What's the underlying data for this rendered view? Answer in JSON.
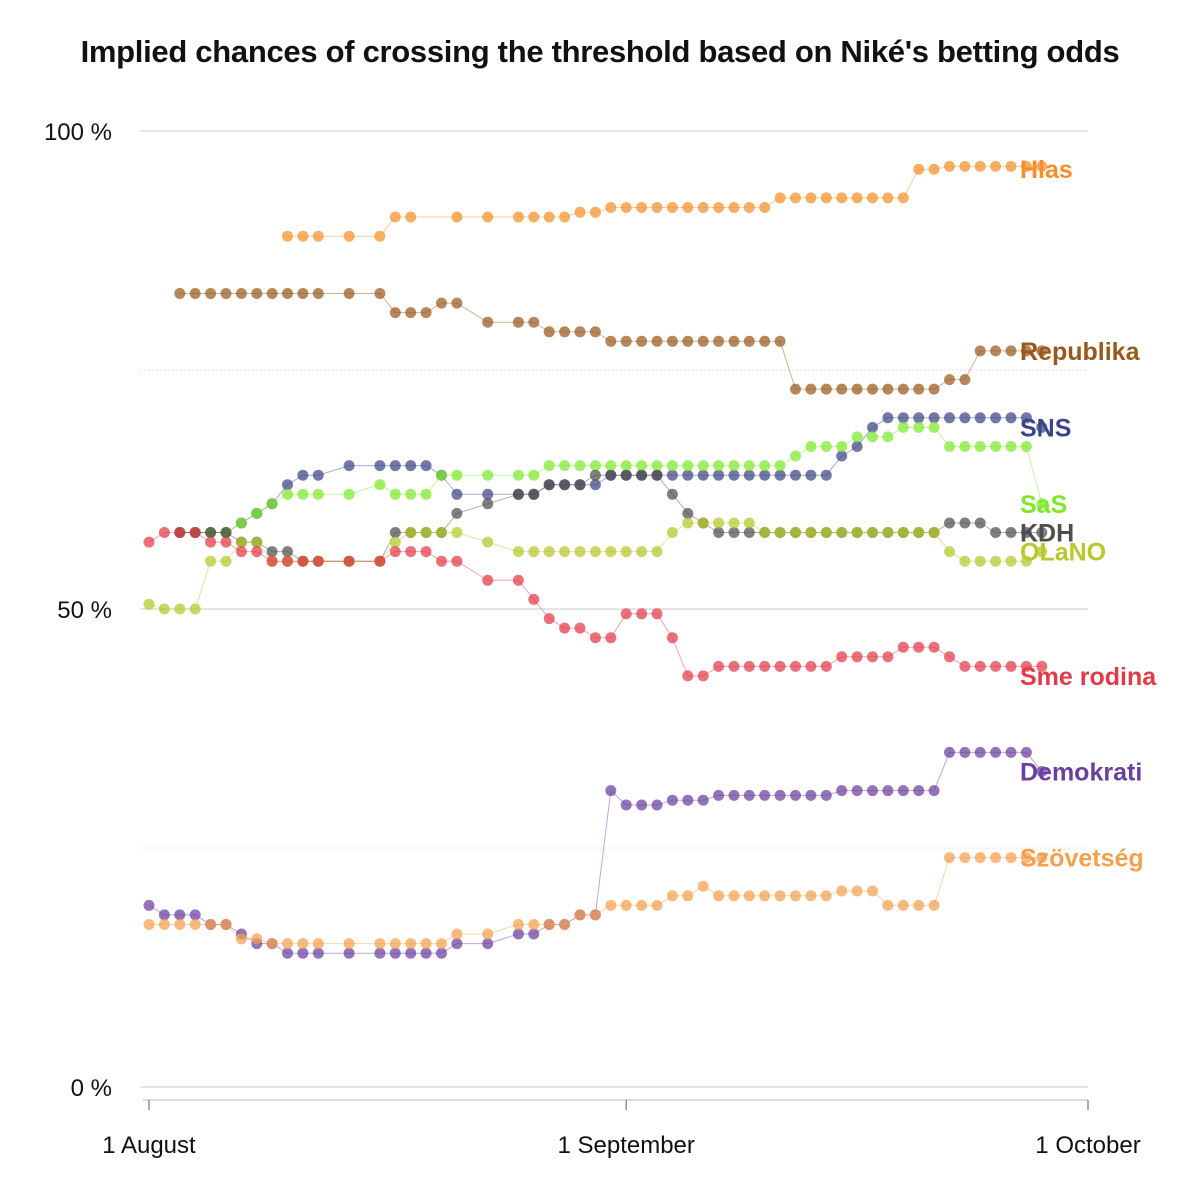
{
  "chart_data": {
    "type": "scatter",
    "title": "Implied chances of crossing the threshold based on Niké's betting odds",
    "xlabel": "",
    "ylabel": "",
    "x_ticks": [
      "1 August",
      "1 September",
      "1 October"
    ],
    "x_range": [
      "2023-08-01",
      "2023-10-01"
    ],
    "y_ticks": [
      "0 %",
      "50 %",
      "100 %"
    ],
    "ylim": [
      0,
      100
    ],
    "grid": true,
    "legend": "labels at line ends",
    "series": [
      {
        "name": "Hlas",
        "color": "#f5902a",
        "label_y": 96,
        "x": [
          "08-10",
          "08-11",
          "08-12",
          "08-14",
          "08-16",
          "08-17",
          "08-18",
          "08-21",
          "08-23",
          "08-25",
          "08-26",
          "08-27",
          "08-28",
          "08-29",
          "08-30",
          "08-31",
          "09-01",
          "09-02",
          "09-03",
          "09-04",
          "09-05",
          "09-06",
          "09-07",
          "09-08",
          "09-09",
          "09-10",
          "09-11",
          "09-12",
          "09-13",
          "09-14",
          "09-15",
          "09-16",
          "09-17",
          "09-18",
          "09-19",
          "09-20",
          "09-21",
          "09-22",
          "09-23",
          "09-24",
          "09-25",
          "09-26",
          "09-27",
          "09-28"
        ],
        "y": [
          89,
          89,
          89,
          89,
          89,
          91,
          91,
          91,
          91,
          91,
          91,
          91,
          91,
          91.5,
          91.5,
          92,
          92,
          92,
          92,
          92,
          92,
          92,
          92,
          92,
          92,
          92,
          93,
          93,
          93,
          93,
          93,
          93,
          93,
          93,
          93,
          96,
          96,
          96.3,
          96.3,
          96.3,
          96.3,
          96.3,
          96.3,
          96.3
        ]
      },
      {
        "name": "Republika",
        "color": "#98591d",
        "label_y": 77,
        "x": [
          "08-03",
          "08-04",
          "08-05",
          "08-06",
          "08-07",
          "08-08",
          "08-09",
          "08-10",
          "08-11",
          "08-12",
          "08-14",
          "08-16",
          "08-17",
          "08-18",
          "08-19",
          "08-20",
          "08-21",
          "08-23",
          "08-25",
          "08-26",
          "08-27",
          "08-28",
          "08-29",
          "08-30",
          "08-31",
          "09-01",
          "09-02",
          "09-03",
          "09-04",
          "09-05",
          "09-06",
          "09-07",
          "09-08",
          "09-09",
          "09-10",
          "09-11",
          "09-12",
          "09-13",
          "09-14",
          "09-15",
          "09-16",
          "09-17",
          "09-18",
          "09-19",
          "09-20",
          "09-21",
          "09-22",
          "09-23",
          "09-24",
          "09-25",
          "09-26",
          "09-27",
          "09-28"
        ],
        "y": [
          83,
          83,
          83,
          83,
          83,
          83,
          83,
          83,
          83,
          83,
          83,
          83,
          81,
          81,
          81,
          82,
          82,
          80,
          80,
          80,
          79,
          79,
          79,
          79,
          78,
          78,
          78,
          78,
          78,
          78,
          78,
          78,
          78,
          78,
          78,
          78,
          73,
          73,
          73,
          73,
          73,
          73,
          73,
          73,
          73,
          73,
          74,
          74,
          77,
          77,
          77,
          77,
          77
        ]
      },
      {
        "name": "SNS",
        "color": "#3b4585",
        "label_y": 69,
        "x": [
          "08-03",
          "08-04",
          "08-05",
          "08-06",
          "08-07",
          "08-08",
          "08-09",
          "08-10",
          "08-11",
          "08-12",
          "08-14",
          "08-16",
          "08-17",
          "08-18",
          "08-19",
          "08-20",
          "08-21",
          "08-23",
          "08-25",
          "08-26",
          "08-27",
          "08-28",
          "08-29",
          "08-30",
          "08-31",
          "09-01",
          "09-02",
          "09-03",
          "09-04",
          "09-05",
          "09-06",
          "09-07",
          "09-08",
          "09-09",
          "09-10",
          "09-11",
          "09-12",
          "09-13",
          "09-14",
          "09-15",
          "09-16",
          "09-17",
          "09-18",
          "09-19",
          "09-20",
          "09-21",
          "09-22",
          "09-23",
          "09-24",
          "09-25",
          "09-26",
          "09-27",
          "09-28"
        ],
        "y": [
          58,
          58,
          58,
          58,
          59,
          60,
          61,
          63,
          64,
          64,
          65,
          65,
          65,
          65,
          65,
          64,
          62,
          62,
          62,
          62,
          63,
          63,
          63,
          63,
          64,
          64,
          64,
          64,
          64,
          64,
          64,
          64,
          64,
          64,
          64,
          64,
          64,
          64,
          64,
          66,
          67,
          69,
          70,
          70,
          70,
          70,
          70,
          70,
          70,
          70,
          70,
          70,
          69
        ]
      },
      {
        "name": "SaS",
        "color": "#7fe82c",
        "label_y": 61,
        "x": [
          "08-03",
          "08-04",
          "08-05",
          "08-06",
          "08-07",
          "08-08",
          "08-09",
          "08-10",
          "08-11",
          "08-12",
          "08-14",
          "08-16",
          "08-17",
          "08-18",
          "08-19",
          "08-20",
          "08-21",
          "08-23",
          "08-25",
          "08-26",
          "08-27",
          "08-28",
          "08-29",
          "08-30",
          "08-31",
          "09-01",
          "09-02",
          "09-03",
          "09-04",
          "09-05",
          "09-06",
          "09-07",
          "09-08",
          "09-09",
          "09-10",
          "09-11",
          "09-12",
          "09-13",
          "09-14",
          "09-15",
          "09-16",
          "09-17",
          "09-18",
          "09-19",
          "09-20",
          "09-21",
          "09-22",
          "09-23",
          "09-24",
          "09-25",
          "09-26",
          "09-27",
          "09-28"
        ],
        "y": [
          58,
          58,
          58,
          58,
          59,
          60,
          61,
          62,
          62,
          62,
          62,
          63,
          62,
          62,
          62,
          64,
          64,
          64,
          64,
          64,
          65,
          65,
          65,
          65,
          65,
          65,
          65,
          65,
          65,
          65,
          65,
          65,
          65,
          65,
          65,
          65,
          66,
          67,
          67,
          67,
          68,
          68,
          68,
          69,
          69,
          69,
          67,
          67,
          67,
          67,
          67,
          67,
          61
        ]
      },
      {
        "name": "KDH",
        "color": "#4d4d4d",
        "label_y": 58,
        "x": [
          "08-03",
          "08-04",
          "08-05",
          "08-06",
          "08-07",
          "08-08",
          "08-09",
          "08-10",
          "08-11",
          "08-12",
          "08-14",
          "08-16",
          "08-17",
          "08-18",
          "08-19",
          "08-20",
          "08-21",
          "08-23",
          "08-25",
          "08-26",
          "08-27",
          "08-28",
          "08-29",
          "08-30",
          "08-31",
          "09-01",
          "09-02",
          "09-03",
          "09-04",
          "09-05",
          "09-06",
          "09-07",
          "09-08",
          "09-09",
          "09-10",
          "09-11",
          "09-12",
          "09-13",
          "09-14",
          "09-15",
          "09-16",
          "09-17",
          "09-18",
          "09-19",
          "09-20",
          "09-21",
          "09-22",
          "09-23",
          "09-24",
          "09-25",
          "09-26",
          "09-27",
          "09-28"
        ],
        "y": [
          58,
          58,
          58,
          58,
          57,
          57,
          56,
          56,
          55,
          55,
          55,
          55,
          58,
          58,
          58,
          58,
          60,
          61,
          62,
          62,
          63,
          63,
          63,
          64,
          64,
          64,
          64,
          64,
          62,
          60,
          59,
          58,
          58,
          58,
          58,
          58,
          58,
          58,
          58,
          58,
          58,
          58,
          58,
          58,
          58,
          58,
          59,
          59,
          59,
          58,
          58,
          58,
          58
        ]
      },
      {
        "name": "OLaNO",
        "color": "#b6c82a",
        "label_y": 56,
        "x": [
          "08-01",
          "08-02",
          "08-03",
          "08-04",
          "08-05",
          "08-06",
          "08-07",
          "08-08",
          "08-09",
          "08-10",
          "08-11",
          "08-12",
          "08-14",
          "08-16",
          "08-17",
          "08-18",
          "08-19",
          "08-20",
          "08-21",
          "08-23",
          "08-25",
          "08-26",
          "08-27",
          "08-28",
          "08-29",
          "08-30",
          "08-31",
          "09-01",
          "09-02",
          "09-03",
          "09-04",
          "09-05",
          "09-06",
          "09-07",
          "09-08",
          "09-09",
          "09-10",
          "09-11",
          "09-12",
          "09-13",
          "09-14",
          "09-15",
          "09-16",
          "09-17",
          "09-18",
          "09-19",
          "09-20",
          "09-21",
          "09-22",
          "09-23",
          "09-24",
          "09-25",
          "09-26",
          "09-27",
          "09-28"
        ],
        "y": [
          50.5,
          50,
          50,
          50,
          55,
          55,
          57,
          57,
          55,
          55,
          55,
          55,
          55,
          55,
          57,
          58,
          58,
          58,
          58,
          57,
          56,
          56,
          56,
          56,
          56,
          56,
          56,
          56,
          56,
          56,
          58,
          59,
          59,
          59,
          59,
          59,
          58,
          58,
          58,
          58,
          58,
          58,
          58,
          58,
          58,
          58,
          58,
          58,
          56,
          55,
          55,
          55,
          55,
          55,
          56
        ]
      },
      {
        "name": "Sme rodina",
        "color": "#e23a46",
        "label_y": 43,
        "x": [
          "08-01",
          "08-02",
          "08-03",
          "08-04",
          "08-05",
          "08-06",
          "08-07",
          "08-08",
          "08-09",
          "08-10",
          "08-11",
          "08-12",
          "08-14",
          "08-16",
          "08-17",
          "08-18",
          "08-19",
          "08-20",
          "08-21",
          "08-23",
          "08-25",
          "08-26",
          "08-27",
          "08-28",
          "08-29",
          "08-30",
          "08-31",
          "09-01",
          "09-02",
          "09-03",
          "09-04",
          "09-05",
          "09-06",
          "09-07",
          "09-08",
          "09-09",
          "09-10",
          "09-11",
          "09-12",
          "09-13",
          "09-14",
          "09-15",
          "09-16",
          "09-17",
          "09-18",
          "09-19",
          "09-20",
          "09-21",
          "09-22",
          "09-23",
          "09-24",
          "09-25",
          "09-26",
          "09-27",
          "09-28"
        ],
        "y": [
          57,
          58,
          58,
          58,
          57,
          57,
          56,
          56,
          55,
          55,
          55,
          55,
          55,
          55,
          56,
          56,
          56,
          55,
          55,
          53,
          53,
          51,
          49,
          48,
          48,
          47,
          47,
          49.5,
          49.5,
          49.5,
          47,
          43,
          43,
          44,
          44,
          44,
          44,
          44,
          44,
          44,
          44,
          45,
          45,
          45,
          45,
          46,
          46,
          46,
          45,
          44,
          44,
          44,
          44,
          44,
          44
        ]
      },
      {
        "name": "Demokrati",
        "color": "#6a3fa0",
        "label_y": 33,
        "x": [
          "08-01",
          "08-02",
          "08-03",
          "08-04",
          "08-05",
          "08-06",
          "08-07",
          "08-08",
          "08-09",
          "08-10",
          "08-11",
          "08-12",
          "08-14",
          "08-16",
          "08-17",
          "08-18",
          "08-19",
          "08-20",
          "08-21",
          "08-23",
          "08-25",
          "08-26",
          "08-27",
          "08-28",
          "08-29",
          "08-30",
          "08-31",
          "09-01",
          "09-02",
          "09-03",
          "09-04",
          "09-05",
          "09-06",
          "09-07",
          "09-08",
          "09-09",
          "09-10",
          "09-11",
          "09-12",
          "09-13",
          "09-14",
          "09-15",
          "09-16",
          "09-17",
          "09-18",
          "09-19",
          "09-20",
          "09-21",
          "09-22",
          "09-23",
          "09-24",
          "09-25",
          "09-26",
          "09-27",
          "09-28"
        ],
        "y": [
          19,
          18,
          18,
          18,
          17,
          17,
          16,
          15,
          15,
          14,
          14,
          14,
          14,
          14,
          14,
          14,
          14,
          14,
          15,
          15,
          16,
          16,
          17,
          17,
          18,
          18,
          31,
          29.5,
          29.5,
          29.5,
          30,
          30,
          30,
          30.5,
          30.5,
          30.5,
          30.5,
          30.5,
          30.5,
          30.5,
          30.5,
          31,
          31,
          31,
          31,
          31,
          31,
          31,
          35,
          35,
          35,
          35,
          35,
          35,
          33
        ]
      },
      {
        "name": "Szövetség",
        "color": "#f5a04e",
        "label_y": 24,
        "x": [
          "08-01",
          "08-02",
          "08-03",
          "08-04",
          "08-05",
          "08-06",
          "08-07",
          "08-08",
          "08-09",
          "08-10",
          "08-11",
          "08-12",
          "08-14",
          "08-16",
          "08-17",
          "08-18",
          "08-19",
          "08-20",
          "08-21",
          "08-23",
          "08-25",
          "08-26",
          "08-27",
          "08-28",
          "08-29",
          "08-30",
          "08-31",
          "09-01",
          "09-02",
          "09-03",
          "09-04",
          "09-05",
          "09-06",
          "09-07",
          "09-08",
          "09-09",
          "09-10",
          "09-11",
          "09-12",
          "09-13",
          "09-14",
          "09-15",
          "09-16",
          "09-17",
          "09-18",
          "09-19",
          "09-20",
          "09-21",
          "09-22",
          "09-23",
          "09-24",
          "09-25",
          "09-26",
          "09-27",
          "09-28"
        ],
        "y": [
          17,
          17,
          17,
          17,
          17,
          17,
          15.5,
          15.5,
          15,
          15,
          15,
          15,
          15,
          15,
          15,
          15,
          15,
          15,
          16,
          16,
          17,
          17,
          17,
          17,
          18,
          18,
          19,
          19,
          19,
          19,
          20,
          20,
          21,
          20,
          20,
          20,
          20,
          20,
          20,
          20,
          20,
          20.5,
          20.5,
          20.5,
          19,
          19,
          19,
          19,
          24,
          24,
          24,
          24,
          24,
          24,
          24
        ]
      }
    ]
  }
}
